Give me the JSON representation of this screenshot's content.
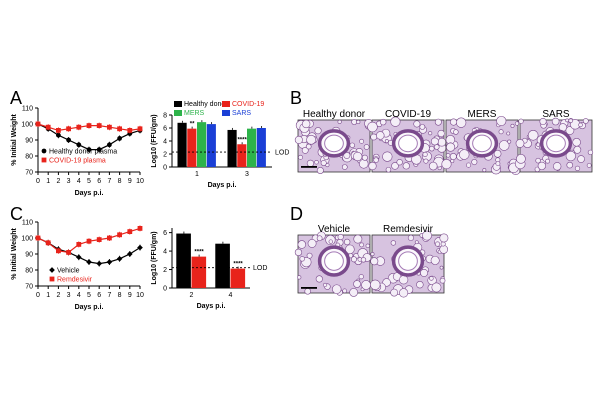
{
  "panels": {
    "A": {
      "letter": "A",
      "weight_chart": {
        "type": "line",
        "xlabel": "Days p.i.",
        "ylabel": "% Initial Weight",
        "xlim": [
          0,
          10
        ],
        "ylim": [
          70,
          110
        ],
        "x_ticks": [
          "0",
          "1",
          "2",
          "3",
          "4",
          "5",
          "6",
          "7",
          "8",
          "9",
          "10"
        ],
        "y_ticks": [
          "70",
          "80",
          "90",
          "100",
          "110"
        ],
        "series": [
          {
            "name": "Healthy donor plasma",
            "color": "#000000",
            "marker": "circle",
            "x": [
              0,
              1,
              2,
              3,
              4,
              5,
              6,
              7,
              8,
              9,
              10
            ],
            "y": [
              100,
              97,
              93,
              90,
              87,
              84,
              84,
              87,
              91,
              94,
              96
            ]
          },
          {
            "name": "COVID-19 plasma",
            "color": "#e8231b",
            "marker": "square",
            "x": [
              0,
              1,
              2,
              3,
              4,
              5,
              6,
              7,
              8,
              9,
              10
            ],
            "y": [
              100,
              98,
              96,
              97,
              98,
              99,
              99,
              98,
              97,
              96,
              97
            ]
          }
        ]
      },
      "titer_chart": {
        "type": "bar",
        "ylabel": "Log10 (FFU/gm)",
        "xlabel": "Days p.i.",
        "categories": [
          "1",
          "3"
        ],
        "ylim": [
          0,
          8
        ],
        "y_ticks": [
          "0",
          "2",
          "4",
          "6",
          "8"
        ],
        "lod_label": "LOD",
        "lod": 2.3,
        "sig_labels": [
          "**",
          "****"
        ],
        "series": [
          {
            "name": "Healthy donor",
            "color": "#000000",
            "values": [
              6.8,
              5.7
            ]
          },
          {
            "name": "COVID-19",
            "color": "#e8231b",
            "values": [
              5.9,
              3.5
            ]
          },
          {
            "name": "MERS",
            "color": "#2db34a",
            "values": [
              6.9,
              5.9
            ]
          },
          {
            "name": "SARS",
            "color": "#1a3fd6",
            "values": [
              6.6,
              6.0
            ]
          }
        ]
      }
    },
    "B": {
      "letter": "B",
      "images": [
        "Healthy donor",
        "COVID-19",
        "MERS",
        "SARS"
      ]
    },
    "C": {
      "letter": "C",
      "weight_chart": {
        "type": "line",
        "xlabel": "Days p.i.",
        "ylabel": "% Initial Weight",
        "xlim": [
          0,
          10
        ],
        "ylim": [
          70,
          110
        ],
        "x_ticks": [
          "0",
          "1",
          "2",
          "3",
          "4",
          "5",
          "6",
          "7",
          "8",
          "9",
          "10"
        ],
        "y_ticks": [
          "70",
          "80",
          "90",
          "100",
          "110"
        ],
        "series": [
          {
            "name": "Vehicle",
            "color": "#000000",
            "marker": "diamond",
            "x": [
              0,
              1,
              2,
              3,
              4,
              5,
              6,
              7,
              8,
              9,
              10
            ],
            "y": [
              100,
              97,
              93,
              91,
              88,
              85,
              84,
              85,
              87,
              90,
              94
            ]
          },
          {
            "name": "Remdesivir",
            "color": "#e8231b",
            "marker": "square",
            "x": [
              0,
              1,
              2,
              3,
              4,
              5,
              6,
              7,
              8,
              9,
              10
            ],
            "y": [
              100,
              97,
              92,
              91,
              96,
              98,
              99,
              100,
              102,
              104,
              106
            ]
          }
        ]
      },
      "titer_chart": {
        "type": "bar",
        "ylabel": "Log10 (FFU/gm)",
        "xlabel": "Days p.i.",
        "categories": [
          "2",
          "4"
        ],
        "ylim": [
          0,
          6.5
        ],
        "y_ticks": [
          "0",
          "2",
          "4",
          "6"
        ],
        "lod_label": "LOD",
        "lod": 2.2,
        "sig_labels": [
          "****",
          "****"
        ],
        "series": [
          {
            "name": "Vehicle",
            "color": "#000000",
            "values": [
              5.9,
              4.8
            ]
          },
          {
            "name": "Remdesivir",
            "color": "#e8231b",
            "values": [
              3.4,
              2.1
            ]
          }
        ]
      }
    },
    "D": {
      "letter": "D",
      "images": [
        "Vehicle",
        "Remdesivir"
      ]
    }
  },
  "colors": {
    "black": "#000000",
    "red": "#e8231b",
    "green": "#2db34a",
    "blue": "#1a3fd6",
    "tissue": "#d7c3e0",
    "tissue_dark": "#7a4a8c"
  }
}
